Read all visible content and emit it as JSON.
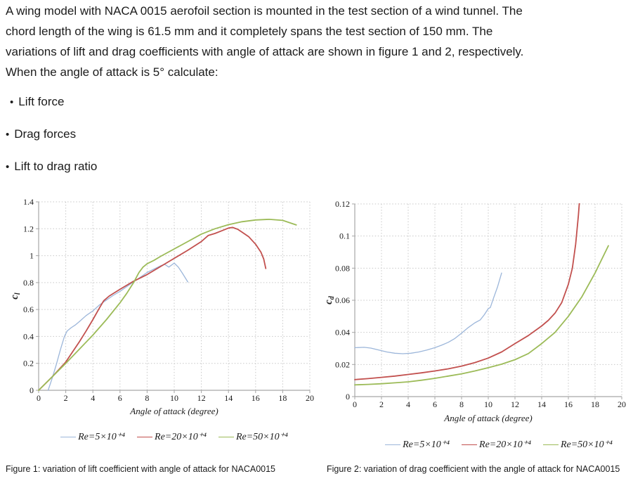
{
  "problem": {
    "lines": [
      "A wing model with NACA 0015 aerofoil section is mounted in the test section of a wind tunnel. The",
      "chord length of the wing is 61.5 mm and it completely spans the test section of 150 mm. The",
      "variations of lift and drag coefficients with angle of attack are shown in figure 1 and 2, respectively.",
      "When the angle of attack is 5°  calculate:"
    ]
  },
  "bullets": {
    "marker": "•",
    "items": [
      "Lift force",
      "Drag forces",
      "Lift to drag ratio"
    ]
  },
  "colors": {
    "axis": "#a6a6a6",
    "grid": "#c7c7c7",
    "series_blue": "#9cb6da",
    "series_red": "#c2504e",
    "series_green": "#9cbb58"
  },
  "chart_data": [
    {
      "id": "lift",
      "type": "line",
      "title": "",
      "xlabel": "Angle of attack (degree)",
      "ylabel": {
        "main": "c",
        "sub": "l"
      },
      "xlim": [
        0,
        20
      ],
      "ylim": [
        0,
        1.4
      ],
      "grid": "dotted",
      "legend_position": "bottom",
      "xticks": [
        0,
        2,
        4,
        6,
        8,
        10,
        12,
        14,
        16,
        18,
        20
      ],
      "xtick_labels": [
        "0",
        "2",
        "4",
        "6",
        "8",
        "10",
        "12",
        "14",
        "16",
        "18",
        "20"
      ],
      "ytick_vals": [
        0,
        0.2,
        0.4,
        0.6,
        0.8,
        1,
        1.2,
        1.4
      ],
      "ytick_labels": [
        "0",
        "0.2",
        "0.4",
        "0.6",
        "0.8",
        "1",
        "1.2",
        "1.4"
      ],
      "caption": "Figure 1: variation of lift coefficient with angle of attack for NACA0015",
      "series": [
        {
          "name": "Re=5×10⁺⁴",
          "color": "#9cb6da",
          "width": 1.3,
          "points": [
            [
              0.7,
              0
            ],
            [
              1.0,
              0.09
            ],
            [
              1.3,
              0.19
            ],
            [
              1.6,
              0.3
            ],
            [
              1.9,
              0.4
            ],
            [
              2.1,
              0.44
            ],
            [
              2.4,
              0.465
            ],
            [
              2.7,
              0.485
            ],
            [
              3,
              0.51
            ],
            [
              3.5,
              0.555
            ],
            [
              4,
              0.59
            ],
            [
              4.5,
              0.635
            ],
            [
              5,
              0.67
            ],
            [
              5.5,
              0.705
            ],
            [
              6,
              0.735
            ],
            [
              6.5,
              0.77
            ],
            [
              7,
              0.805
            ],
            [
              7.5,
              0.84
            ],
            [
              8,
              0.875
            ],
            [
              8.5,
              0.9
            ],
            [
              9,
              0.925
            ],
            [
              9.3,
              0.935
            ],
            [
              9.6,
              0.915
            ],
            [
              10,
              0.945
            ],
            [
              10.3,
              0.915
            ],
            [
              10.6,
              0.87
            ],
            [
              11,
              0.805
            ]
          ]
        },
        {
          "name": "Re=20×10⁺⁴",
          "color": "#c2504e",
          "width": 1.8,
          "points": [
            [
              0,
              0
            ],
            [
              1,
              0.1
            ],
            [
              2,
              0.21
            ],
            [
              2.5,
              0.285
            ],
            [
              3,
              0.36
            ],
            [
              3.5,
              0.44
            ],
            [
              4,
              0.525
            ],
            [
              4.5,
              0.615
            ],
            [
              4.8,
              0.665
            ],
            [
              5.2,
              0.7
            ],
            [
              6,
              0.75
            ],
            [
              7,
              0.81
            ],
            [
              7.5,
              0.835
            ],
            [
              8,
              0.86
            ],
            [
              9,
              0.92
            ],
            [
              10,
              0.98
            ],
            [
              11,
              1.04
            ],
            [
              12,
              1.105
            ],
            [
              12.5,
              1.15
            ],
            [
              13,
              1.165
            ],
            [
              13.5,
              1.185
            ],
            [
              14,
              1.205
            ],
            [
              14.3,
              1.21
            ],
            [
              14.7,
              1.195
            ],
            [
              15,
              1.175
            ],
            [
              15.5,
              1.14
            ],
            [
              16,
              1.085
            ],
            [
              16.4,
              1.025
            ],
            [
              16.6,
              0.975
            ],
            [
              16.75,
              0.905
            ]
          ]
        },
        {
          "name": "Re=50×10⁺⁴",
          "color": "#9cbb58",
          "width": 1.8,
          "points": [
            [
              0,
              0
            ],
            [
              1,
              0.1
            ],
            [
              2,
              0.2
            ],
            [
              3,
              0.305
            ],
            [
              4,
              0.41
            ],
            [
              5,
              0.525
            ],
            [
              6,
              0.65
            ],
            [
              6.5,
              0.72
            ],
            [
              7,
              0.8
            ],
            [
              7.4,
              0.875
            ],
            [
              7.7,
              0.915
            ],
            [
              8,
              0.94
            ],
            [
              8.5,
              0.965
            ],
            [
              9,
              0.995
            ],
            [
              10,
              1.05
            ],
            [
              11,
              1.105
            ],
            [
              12,
              1.16
            ],
            [
              13,
              1.2
            ],
            [
              14,
              1.23
            ],
            [
              15,
              1.252
            ],
            [
              16,
              1.265
            ],
            [
              17,
              1.27
            ],
            [
              18,
              1.262
            ],
            [
              19,
              1.228
            ]
          ]
        }
      ]
    },
    {
      "id": "drag",
      "type": "line",
      "title": "",
      "xlabel": "Angle of attack (degree)",
      "ylabel": {
        "main": "c",
        "sub": "d"
      },
      "xlim": [
        0,
        20
      ],
      "ylim": [
        0,
        0.12
      ],
      "grid": "dotted",
      "legend_position": "bottom",
      "xticks": [
        0,
        2,
        4,
        6,
        8,
        10,
        12,
        14,
        16,
        18,
        20
      ],
      "xtick_labels": [
        "0",
        "2",
        "4",
        "6",
        "8",
        "10",
        "12",
        "14",
        "16",
        "18",
        "20"
      ],
      "ytick_vals": [
        0,
        0.02,
        0.04,
        0.06,
        0.08,
        0.1,
        0.12
      ],
      "ytick_labels": [
        "0",
        "0.02",
        "0.04",
        "0.06",
        "0.08",
        "0.1",
        "0.12"
      ],
      "caption": "Figure 2: variation of drag coefficient with the angle of attack for NACA0015",
      "series": [
        {
          "name": "Re=5×10⁺⁴",
          "color": "#9cb6da",
          "width": 1.3,
          "points": [
            [
              0,
              0.0305
            ],
            [
              0.7,
              0.0307
            ],
            [
              1.2,
              0.0302
            ],
            [
              1.8,
              0.029
            ],
            [
              2.4,
              0.0278
            ],
            [
              3,
              0.027
            ],
            [
              3.6,
              0.0267
            ],
            [
              4.2,
              0.027
            ],
            [
              4.8,
              0.0278
            ],
            [
              5.4,
              0.029
            ],
            [
              6,
              0.0305
            ],
            [
              6.5,
              0.032
            ],
            [
              7,
              0.0338
            ],
            [
              7.5,
              0.0362
            ],
            [
              8,
              0.0395
            ],
            [
              8.5,
              0.043
            ],
            [
              9,
              0.046
            ],
            [
              9.4,
              0.0478
            ],
            [
              9.7,
              0.051
            ],
            [
              10,
              0.0548
            ],
            [
              10.15,
              0.0555
            ],
            [
              10.4,
              0.0615
            ],
            [
              10.7,
              0.0685
            ],
            [
              11,
              0.077
            ]
          ]
        },
        {
          "name": "Re=20×10⁺⁴",
          "color": "#c2504e",
          "width": 1.8,
          "points": [
            [
              0,
              0.0106
            ],
            [
              1,
              0.0112
            ],
            [
              2,
              0.012
            ],
            [
              3,
              0.0128
            ],
            [
              4,
              0.0138
            ],
            [
              5,
              0.0148
            ],
            [
              6,
              0.016
            ],
            [
              7,
              0.0173
            ],
            [
              8,
              0.019
            ],
            [
              9,
              0.0212
            ],
            [
              10,
              0.024
            ],
            [
              11,
              0.0278
            ],
            [
              12,
              0.033
            ],
            [
              13,
              0.038
            ],
            [
              14,
              0.044
            ],
            [
              14.5,
              0.0475
            ],
            [
              15,
              0.052
            ],
            [
              15.5,
              0.0585
            ],
            [
              16,
              0.07
            ],
            [
              16.3,
              0.08
            ],
            [
              16.55,
              0.095
            ],
            [
              16.75,
              0.113
            ],
            [
              16.85,
              0.124
            ]
          ]
        },
        {
          "name": "Re=50×10⁺⁴",
          "color": "#9cbb58",
          "width": 1.8,
          "points": [
            [
              0,
              0.0073
            ],
            [
              1,
              0.0076
            ],
            [
              2,
              0.008
            ],
            [
              3,
              0.0086
            ],
            [
              4,
              0.0092
            ],
            [
              5,
              0.0102
            ],
            [
              6,
              0.0114
            ],
            [
              7,
              0.0128
            ],
            [
              8,
              0.0142
            ],
            [
              9,
              0.016
            ],
            [
              10,
              0.018
            ],
            [
              11,
              0.0202
            ],
            [
              12,
              0.023
            ],
            [
              13,
              0.0268
            ],
            [
              14,
              0.033
            ],
            [
              15,
              0.04
            ],
            [
              16,
              0.05
            ],
            [
              17,
              0.062
            ],
            [
              18,
              0.077
            ],
            [
              19,
              0.094
            ]
          ]
        }
      ]
    }
  ]
}
